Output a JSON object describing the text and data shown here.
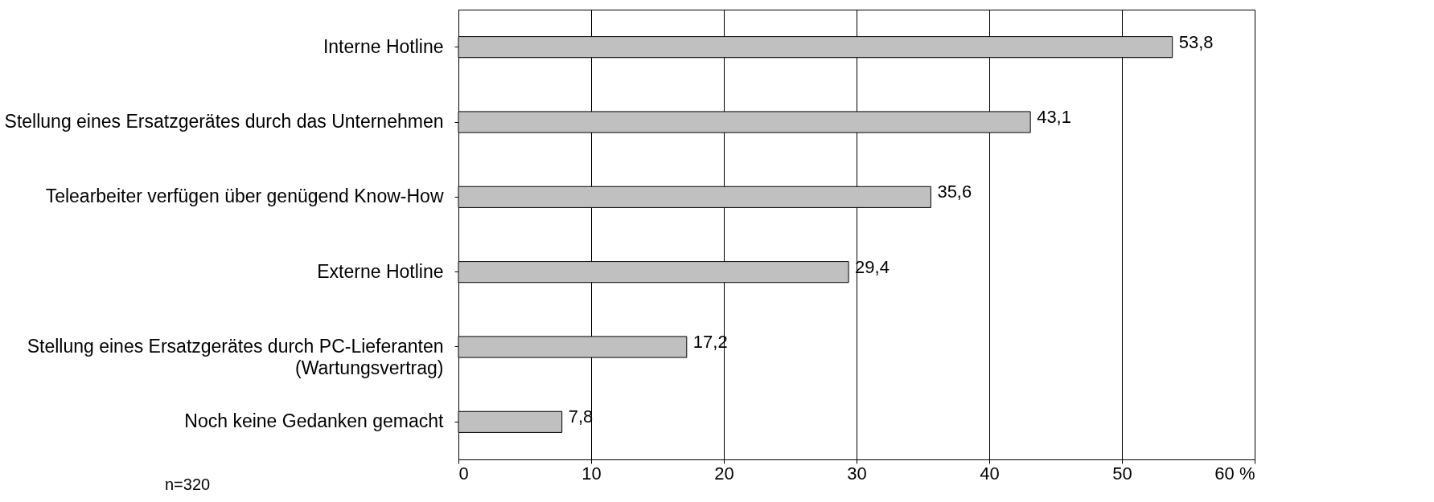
{
  "chart_data": {
    "type": "bar",
    "orientation": "horizontal",
    "categories": [
      "Interne Hotline",
      "Stellung eines Ersatzgerätes durch das Unternehmen",
      "Telearbeiter verfügen über genügend Know-How",
      "Externe Hotline",
      "Stellung eines Ersatzgerätes durch PC-Lieferanten\n(Wartungsvertrag)",
      "Noch keine Gedanken gemacht"
    ],
    "values": [
      53.8,
      43.1,
      35.6,
      29.4,
      17.2,
      7.8
    ],
    "value_labels": [
      "53,8",
      "43,1",
      "35,6",
      "29,4",
      "17,2",
      "7,8"
    ],
    "color": "#c0c0c0",
    "xlim": [
      0,
      60
    ],
    "xticks": [
      0,
      10,
      20,
      30,
      40,
      50,
      {
        "value": 60,
        "label": "60 %"
      }
    ],
    "grid": "x",
    "annotations": [
      "n=320"
    ]
  }
}
